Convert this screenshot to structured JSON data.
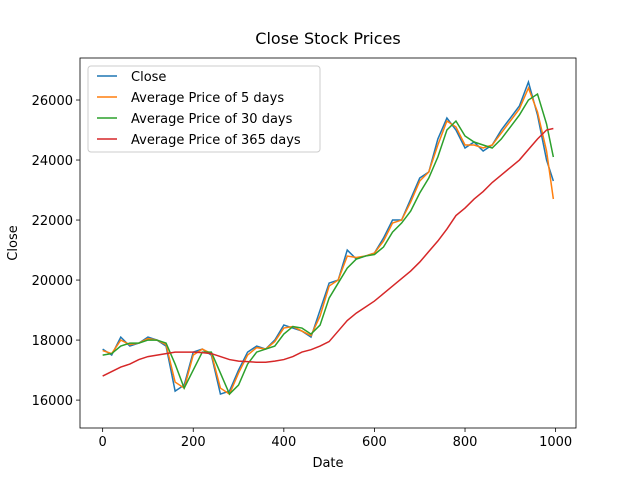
{
  "chart_data": {
    "type": "line",
    "title": "Close Stock Prices",
    "x_label": "Date",
    "y_label": "Close",
    "x": [
      0,
      20,
      40,
      60,
      80,
      100,
      120,
      140,
      160,
      180,
      200,
      220,
      240,
      260,
      280,
      300,
      320,
      340,
      360,
      380,
      400,
      420,
      440,
      460,
      480,
      500,
      520,
      540,
      560,
      580,
      600,
      620,
      640,
      660,
      680,
      700,
      720,
      740,
      760,
      780,
      800,
      820,
      840,
      860,
      880,
      900,
      920,
      940,
      960,
      980,
      995
    ],
    "series": [
      {
        "name": "Close",
        "color": "#1f77b4",
        "values": [
          17700,
          17500,
          18100,
          17800,
          17900,
          18100,
          18000,
          17800,
          16300,
          16500,
          17600,
          17700,
          17500,
          16200,
          16300,
          17000,
          17600,
          17800,
          17700,
          18000,
          18500,
          18400,
          18300,
          18100,
          19000,
          19900,
          20000,
          21000,
          20700,
          20800,
          20900,
          21400,
          22000,
          22000,
          22700,
          23400,
          23600,
          24700,
          25400,
          25000,
          24400,
          24600,
          24300,
          24500,
          25000,
          25400,
          25800,
          26600,
          25500,
          24000,
          23300
        ]
      },
      {
        "name": "Average Price of 5 days",
        "color": "#ff7f0e",
        "values": [
          17650,
          17550,
          18000,
          17850,
          17900,
          18050,
          18000,
          17850,
          16600,
          16400,
          17500,
          17700,
          17550,
          16400,
          16200,
          16900,
          17500,
          17750,
          17700,
          17950,
          18400,
          18450,
          18300,
          18150,
          18800,
          19800,
          20000,
          20800,
          20750,
          20800,
          20900,
          21300,
          21900,
          22000,
          22600,
          23300,
          23600,
          24500,
          25300,
          25100,
          24500,
          24500,
          24400,
          24500,
          24900,
          25300,
          25700,
          26400,
          25600,
          24300,
          22700
        ]
      },
      {
        "name": "Average Price of 30 days",
        "color": "#2ca02c",
        "values": [
          17500,
          17550,
          17800,
          17900,
          17900,
          18000,
          18000,
          17900,
          17200,
          16400,
          17000,
          17600,
          17600,
          16900,
          16200,
          16500,
          17200,
          17600,
          17700,
          17800,
          18200,
          18450,
          18400,
          18200,
          18500,
          19400,
          19900,
          20400,
          20700,
          20800,
          20850,
          21100,
          21600,
          21900,
          22300,
          22900,
          23400,
          24100,
          25000,
          25300,
          24800,
          24600,
          24500,
          24400,
          24700,
          25100,
          25500,
          26000,
          26200,
          25200,
          24100
        ]
      },
      {
        "name": "Average Price of 365 days",
        "color": "#d62728",
        "values": [
          16800,
          16950,
          17100,
          17200,
          17350,
          17450,
          17500,
          17550,
          17600,
          17600,
          17600,
          17580,
          17550,
          17450,
          17350,
          17300,
          17280,
          17260,
          17260,
          17300,
          17350,
          17450,
          17600,
          17680,
          17800,
          17950,
          18300,
          18650,
          18900,
          19100,
          19300,
          19550,
          19800,
          20050,
          20300,
          20600,
          20950,
          21300,
          21700,
          22150,
          22400,
          22700,
          22950,
          23250,
          23500,
          23750,
          24000,
          24350,
          24700,
          25000,
          25050
        ]
      }
    ],
    "xlim": [
      -50,
      1045
    ],
    "ylim": [
      15070,
      27400
    ],
    "xticks": [
      0,
      200,
      400,
      600,
      800,
      1000
    ],
    "yticks": [
      16000,
      18000,
      20000,
      22000,
      24000,
      26000
    ],
    "grid": false,
    "legend": "upper-left"
  }
}
